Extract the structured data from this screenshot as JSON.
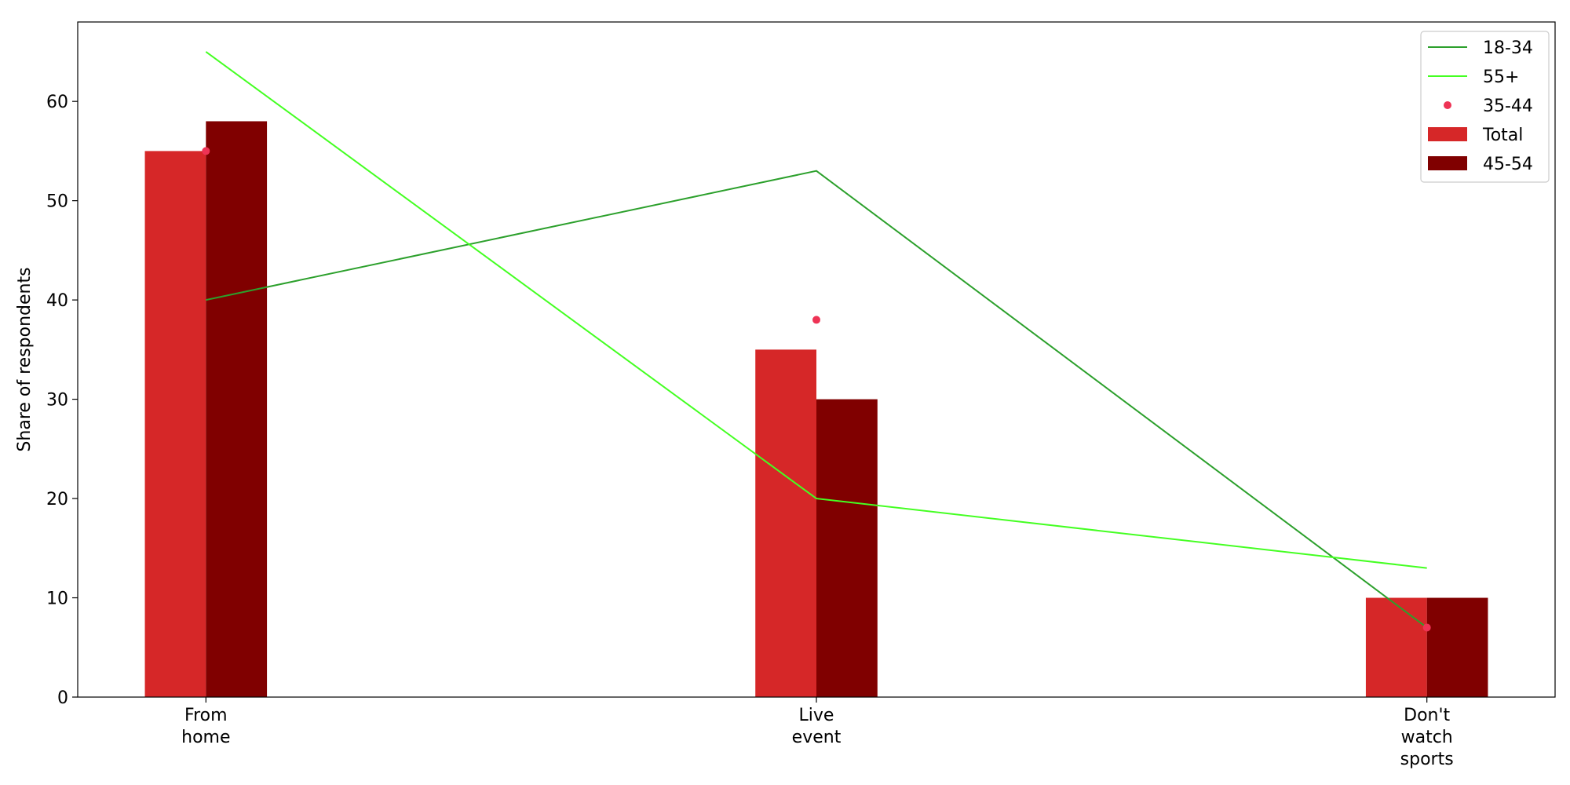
{
  "chart_data": {
    "type": "bar",
    "categories": [
      [
        "From",
        "home"
      ],
      [
        "Live",
        "event"
      ],
      [
        "Don't",
        "watch",
        "sports"
      ]
    ],
    "ylabel": "Share of respondents",
    "xlabel": "",
    "ylim": [
      0,
      68
    ],
    "yticks": [
      0,
      10,
      20,
      30,
      40,
      50,
      60
    ],
    "grid": false,
    "legend_position": "top-right",
    "bar_series": [
      {
        "name": "Total",
        "values": [
          55,
          35,
          10
        ],
        "color": "#d62728"
      },
      {
        "name": "45-54",
        "values": [
          58,
          30,
          10
        ],
        "color": "#800000"
      }
    ],
    "line_series": [
      {
        "name": "18-34",
        "values": [
          40,
          53,
          7
        ],
        "color": "#2ca02c"
      },
      {
        "name": "55+",
        "values": [
          65,
          20,
          13
        ],
        "color": "#44ff22"
      }
    ],
    "scatter_series": [
      {
        "name": "35-44",
        "values": [
          55,
          38,
          7
        ],
        "color": "#ee3355"
      }
    ],
    "legend_order": [
      "18-34",
      "55+",
      "35-44",
      "Total",
      "45-54"
    ]
  }
}
